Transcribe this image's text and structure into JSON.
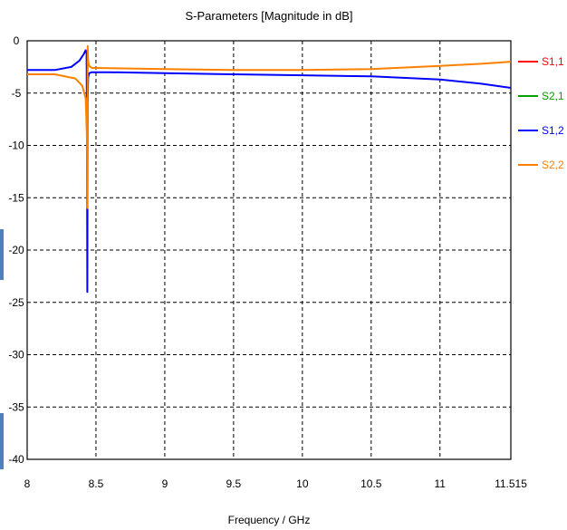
{
  "chart_data": {
    "type": "line",
    "title": "S-Parameters [Magnitude in dB]",
    "xlabel": "Frequency / GHz",
    "ylabel": "",
    "xlim": [
      8,
      11.515
    ],
    "ylim": [
      -40,
      0
    ],
    "xticks": [
      8,
      8.5,
      9,
      9.5,
      10,
      10.5,
      11,
      11.515
    ],
    "xtick_labels": [
      "8",
      "8.5",
      "9",
      "9.5",
      "10",
      "10.5",
      "11",
      "11.515"
    ],
    "yticks": [
      0,
      -5,
      -10,
      -15,
      -20,
      -25,
      -30,
      -35,
      -40
    ],
    "ytick_labels": [
      "0",
      "-5",
      "-10",
      "-15",
      "-20",
      "-25",
      "-30",
      "-35",
      "-40"
    ],
    "grid": true,
    "legend_position": "right",
    "series": [
      {
        "name": "S1,1",
        "color": "#ff0000",
        "x": [],
        "y": []
      },
      {
        "name": "S2,1",
        "color": "#00a000",
        "x": [],
        "y": []
      },
      {
        "name": "S1,2",
        "color": "#0000ff",
        "x": [
          8.0,
          8.2,
          8.32,
          8.38,
          8.41,
          8.425,
          8.432,
          8.435,
          8.437,
          8.44,
          8.443,
          8.45,
          8.47,
          8.5,
          8.6,
          9.0,
          9.5,
          10.0,
          10.5,
          11.0,
          11.3,
          11.515
        ],
        "y": [
          -2.8,
          -2.8,
          -2.5,
          -1.9,
          -1.3,
          -0.9,
          -1.2,
          -10.0,
          -24.0,
          -6.0,
          -3.5,
          -3.1,
          -3.0,
          -3.0,
          -3.0,
          -3.1,
          -3.2,
          -3.3,
          -3.4,
          -3.7,
          -4.1,
          -4.5
        ]
      },
      {
        "name": "S2,2",
        "color": "#ff8000",
        "x": [
          8.0,
          8.2,
          8.35,
          8.4,
          8.425,
          8.435,
          8.438,
          8.44,
          8.442,
          8.445,
          8.45,
          8.47,
          8.5,
          9.0,
          9.5,
          10.0,
          10.5,
          11.0,
          11.3,
          11.515
        ],
        "y": [
          -3.2,
          -3.2,
          -3.6,
          -4.3,
          -5.5,
          -9.5,
          -16.0,
          -0.5,
          -1.5,
          -2.1,
          -2.4,
          -2.6,
          -2.6,
          -2.7,
          -2.8,
          -2.8,
          -2.7,
          -2.4,
          -2.2,
          -2.0
        ]
      }
    ]
  }
}
